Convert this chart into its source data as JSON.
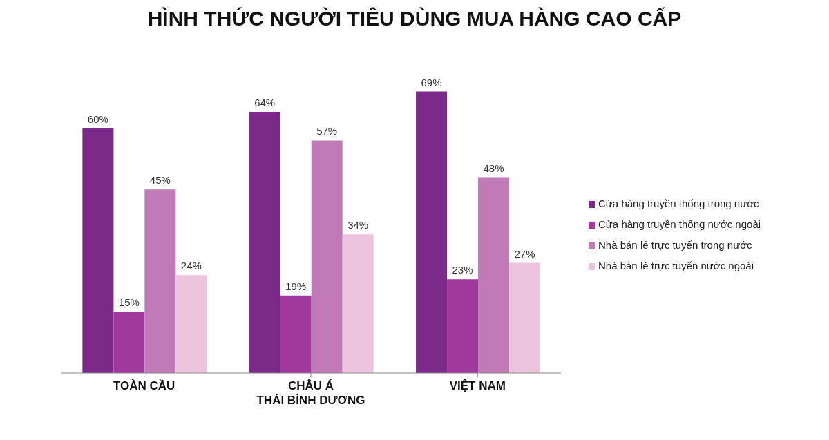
{
  "chart_data": {
    "type": "bar",
    "title": "HÌNH THỨC NGƯỜI TIÊU DÙNG MUA HÀNG CAO CẤP",
    "categories": [
      "TOÀN CẦU",
      "CHÂU Á\nTHÁI BÌNH DƯƠNG",
      "VIỆT NAM"
    ],
    "series": [
      {
        "name": "Cửa hàng truyền thống trong nước",
        "color": "#7b2a8a",
        "values": [
          60,
          64,
          69
        ],
        "value_labels": [
          "60%",
          "64%",
          "69%"
        ]
      },
      {
        "name": "Cửa hàng truyền thống nước ngoài",
        "color": "#a0399c",
        "values": [
          15,
          19,
          23
        ],
        "value_labels": [
          "15%",
          "19%",
          "23%"
        ]
      },
      {
        "name": "Nhà bán lẻ trực tuyến trong nước",
        "color": "#c07ab8",
        "values": [
          45,
          57,
          48
        ],
        "value_labels": [
          "45%",
          "57%",
          "48%"
        ]
      },
      {
        "name": "Nhà bán lẻ trực tuyến nước ngoài",
        "color": "#ecc4de",
        "values": [
          24,
          34,
          27
        ],
        "value_labels": [
          "24%",
          "34%",
          "27%"
        ]
      }
    ],
    "legend": "right",
    "grid": false
  }
}
